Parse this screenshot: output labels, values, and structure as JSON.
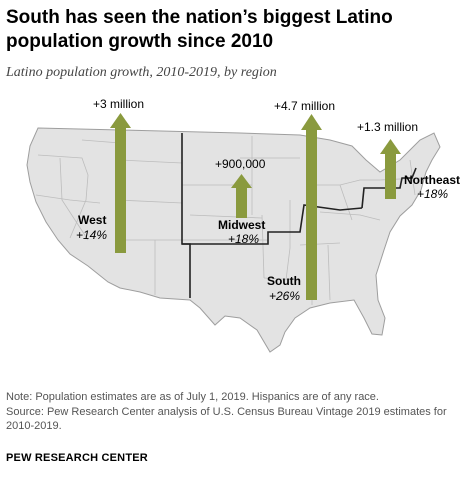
{
  "title": "South has seen the nation’s biggest Latino population growth since 2010",
  "subtitle": "Latino population growth, 2010-2019, by region",
  "colors": {
    "arrow": "#8a9a3e",
    "land": "#e3e3e3",
    "border": "#bdbdbd",
    "region_border": "#222222"
  },
  "chart_data": {
    "type": "map",
    "regions": [
      {
        "name": "West",
        "growth_label": "+14%",
        "amount_label": "+3 million",
        "growth_pct": 14,
        "amount": 3000000
      },
      {
        "name": "Midwest",
        "growth_label": "+18%",
        "amount_label": "+900,000",
        "growth_pct": 18,
        "amount": 900000
      },
      {
        "name": "South",
        "growth_label": "+26%",
        "amount_label": "+4.7 million",
        "growth_pct": 26,
        "amount": 4700000
      },
      {
        "name": "Northeast",
        "growth_label": "+18%",
        "amount_label": "+1.3 million",
        "growth_pct": 18,
        "amount": 1300000
      }
    ]
  },
  "footer": {
    "note": "Note: Population estimates are as of July 1, 2019. Hispanics are of any race.",
    "source": "Source: Pew Research Center analysis of U.S. Census Bureau Vintage 2019 estimates for 2010-2019.",
    "brand": "PEW RESEARCH CENTER"
  }
}
